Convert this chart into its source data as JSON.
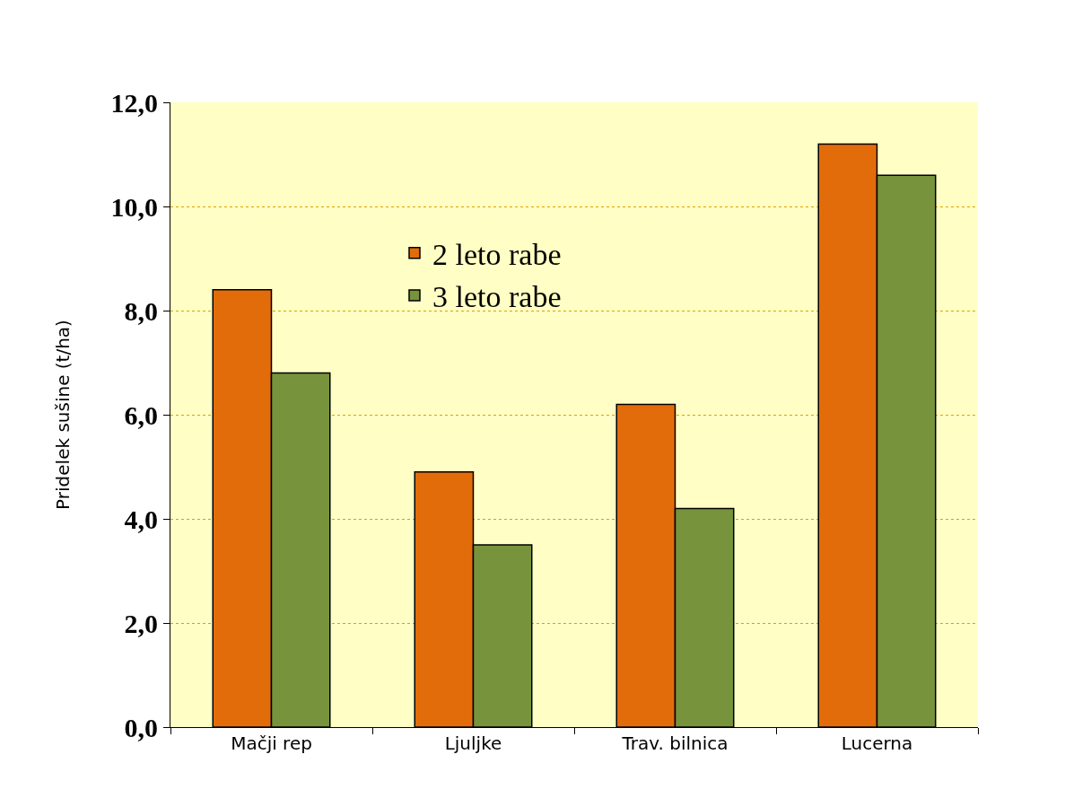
{
  "chart_data": {
    "type": "bar",
    "ylabel": "Pridelek sušine (t/ha)",
    "categories": [
      "Mačji rep",
      "Ljuljke",
      "Trav. bilnica",
      "Lucerna"
    ],
    "series": [
      {
        "name": "2 leto rabe",
        "color": "#e36c0a",
        "values": [
          8.4,
          4.9,
          6.2,
          11.2
        ]
      },
      {
        "name": "3 leto rabe",
        "color": "#77933c",
        "values": [
          6.8,
          3.5,
          4.2,
          10.6
        ]
      }
    ],
    "ylim": [
      0,
      12
    ],
    "yticks": [
      {
        "value": 0,
        "label": "0,0"
      },
      {
        "value": 2,
        "label": "2,0"
      },
      {
        "value": 4,
        "label": "4,0"
      },
      {
        "value": 6,
        "label": "6,0"
      },
      {
        "value": 8,
        "label": "8,0"
      },
      {
        "value": 10,
        "label": "10,0"
      },
      {
        "value": 12,
        "label": "12,0"
      }
    ],
    "grid": "y",
    "legend": "top left"
  }
}
